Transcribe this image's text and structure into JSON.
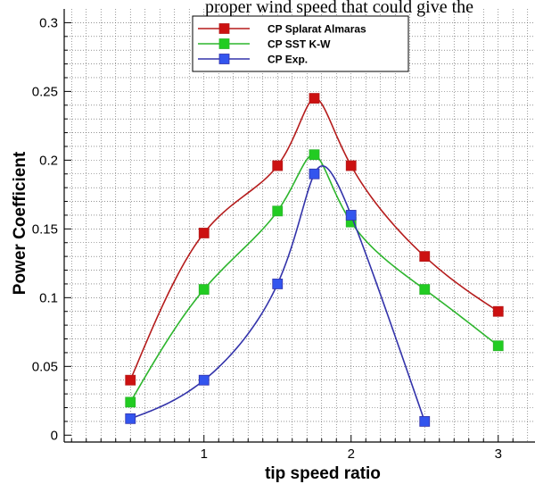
{
  "top_text": "proper wind speed that could give the",
  "chart_data": {
    "type": "line",
    "xlabel": "tip speed ratio",
    "ylabel": "Power Coefficient",
    "xlim": [
      0.05,
      3.25
    ],
    "ylim": [
      -0.005,
      0.31
    ],
    "xticks": [
      1,
      2,
      3
    ],
    "yticks": [
      0,
      0.05,
      0.1,
      0.15,
      0.2,
      0.25,
      0.3
    ],
    "xtick_labels": [
      "1",
      "2",
      "3"
    ],
    "ytick_labels": [
      "0",
      "0.05",
      "0.1",
      "0.15",
      "0.2",
      "0.25",
      "0.3"
    ],
    "grid": true,
    "legend_position": "top-center",
    "series": [
      {
        "name": "CP  Splarat Almaras",
        "color": "#b51c1c",
        "marker_color": "#cc1111",
        "x": [
          0.5,
          1.0,
          1.5,
          1.75,
          2.0,
          2.5,
          3.0
        ],
        "y": [
          0.04,
          0.147,
          0.196,
          0.245,
          0.196,
          0.13,
          0.09
        ]
      },
      {
        "name": "CP SST K-W",
        "color": "#2db52d",
        "marker_color": "#22cc22",
        "x": [
          0.5,
          1.0,
          1.5,
          1.75,
          2.0,
          2.5,
          3.0
        ],
        "y": [
          0.024,
          0.106,
          0.163,
          0.204,
          0.155,
          0.106,
          0.065
        ]
      },
      {
        "name": "CP Exp.",
        "color": "#3333aa",
        "marker_color": "#3355ee",
        "x": [
          0.5,
          1.0,
          1.5,
          1.75,
          2.0,
          2.5
        ],
        "y": [
          0.012,
          0.04,
          0.11,
          0.19,
          0.16,
          0.01
        ]
      }
    ]
  }
}
